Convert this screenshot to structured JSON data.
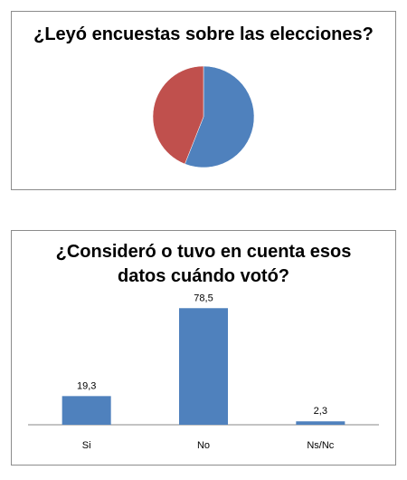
{
  "chart_data": [
    {
      "type": "pie",
      "title": "¿Leyó encuestas sobre las elecciones?",
      "categories": [
        "",
        ""
      ],
      "values": [
        56,
        44
      ],
      "colors": [
        "#4f81bd",
        "#c0504d"
      ]
    },
    {
      "type": "bar",
      "title": "¿Consideró o tuvo en cuenta esos datos cuándo votó?",
      "categories": [
        "Si",
        "No",
        "Ns/Nc"
      ],
      "values": [
        19.3,
        78.5,
        2.3
      ],
      "value_labels": [
        "19,3",
        "78,5",
        "2,3"
      ],
      "ylim": [
        0,
        100
      ],
      "grid": false,
      "colors": [
        "#4f81bd"
      ]
    }
  ]
}
